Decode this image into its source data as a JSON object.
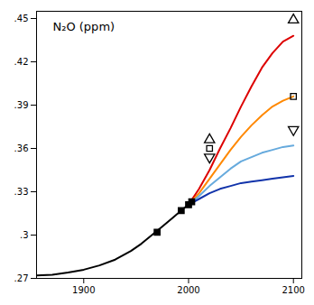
{
  "chart_data": {
    "type": "line",
    "title": "N₂O (ppm)",
    "xlim": [
      1855,
      2108
    ],
    "ylim": [
      0.27,
      0.455
    ],
    "xticks": [
      1900,
      2000,
      2100
    ],
    "yticks": [
      {
        "value": 0.27,
        "label": ".27"
      },
      {
        "value": 0.3,
        "label": ".3"
      },
      {
        "value": 0.33,
        "label": ".33"
      },
      {
        "value": 0.36,
        "label": ".36"
      },
      {
        "value": 0.39,
        "label": ".39"
      },
      {
        "value": 0.42,
        "label": ".42"
      },
      {
        "value": 0.45,
        "label": ".45"
      }
    ],
    "grid": false,
    "series": [
      {
        "color": "#000000",
        "x": [
          1855,
          1870,
          1885,
          1900,
          1915,
          1930,
          1945,
          1955,
          1965,
          1975,
          1985,
          1993,
          1998,
          2002,
          2005
        ],
        "values": [
          0.272,
          0.2725,
          0.274,
          0.276,
          0.279,
          0.283,
          0.289,
          0.294,
          0.3,
          0.306,
          0.312,
          0.317,
          0.32,
          0.323,
          0.325
        ]
      },
      {
        "color": "#dd0000",
        "x": [
          2000,
          2010,
          2020,
          2030,
          2040,
          2050,
          2060,
          2070,
          2080,
          2090,
          2100
        ],
        "values": [
          0.321,
          0.332,
          0.345,
          0.36,
          0.374,
          0.389,
          0.403,
          0.416,
          0.426,
          0.434,
          0.438
        ]
      },
      {
        "color": "#ff8800",
        "x": [
          2000,
          2010,
          2020,
          2030,
          2040,
          2050,
          2060,
          2070,
          2080,
          2090,
          2100
        ],
        "values": [
          0.321,
          0.329,
          0.339,
          0.349,
          0.359,
          0.368,
          0.376,
          0.383,
          0.389,
          0.393,
          0.396
        ]
      },
      {
        "color": "#66aadd",
        "x": [
          2000,
          2010,
          2020,
          2030,
          2040,
          2050,
          2060,
          2070,
          2080,
          2090,
          2100
        ],
        "values": [
          0.321,
          0.327,
          0.334,
          0.34,
          0.346,
          0.351,
          0.354,
          0.357,
          0.359,
          0.361,
          0.362
        ]
      },
      {
        "color": "#1133aa",
        "x": [
          2000,
          2010,
          2020,
          2030,
          2040,
          2050,
          2060,
          2070,
          2080,
          2090,
          2100
        ],
        "values": [
          0.321,
          0.325,
          0.329,
          0.332,
          0.334,
          0.336,
          0.337,
          0.338,
          0.339,
          0.34,
          0.341
        ]
      },
      {
        "type": "scatter",
        "marker": "square",
        "color": "#000000",
        "x": [
          1970,
          1993,
          2000,
          2003
        ],
        "values": [
          0.302,
          0.317,
          0.321,
          0.323
        ]
      },
      {
        "type": "scatter",
        "marker": "triangle-up-open",
        "color": "#000000",
        "x": [
          2020,
          2100
        ],
        "values": [
          0.366,
          0.449
        ]
      },
      {
        "type": "scatter",
        "marker": "square-open",
        "color": "#000000",
        "x": [
          2020,
          2100
        ],
        "values": [
          0.36,
          0.396
        ]
      },
      {
        "type": "scatter",
        "marker": "triangle-down-open",
        "color": "#000000",
        "x": [
          2020,
          2100
        ],
        "values": [
          0.354,
          0.373
        ]
      }
    ]
  }
}
